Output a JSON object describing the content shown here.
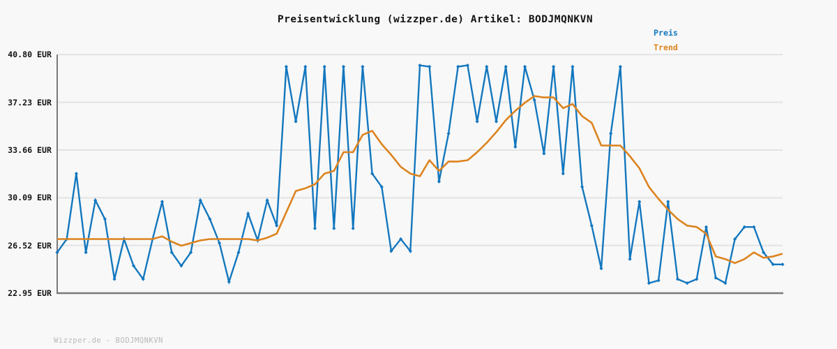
{
  "title": "Preisentwicklung (wizzper.de) Artikel: BODJMQNKVN",
  "legend": {
    "price_label": "Preis",
    "trend_label": "Trend"
  },
  "watermark": "Wizzper.de - BODJMQNKVN",
  "y_axis": {
    "unit": "EUR",
    "tick_labels": [
      "40.80 EUR",
      "37.23 EUR",
      "33.66 EUR",
      "30.09 EUR",
      "26.52 EUR",
      "22.95 EUR"
    ],
    "tick_values": [
      40.8,
      37.23,
      33.66,
      30.09,
      26.52,
      22.95
    ]
  },
  "colors": {
    "price": "#1377be",
    "trend": "#dc831f",
    "grid": "#e3e3e3",
    "axis": "#7a7a7a",
    "background": "#f8f8f8",
    "title_text": "#141414",
    "watermark_text": "#b9b9b9"
  },
  "chart_data": {
    "type": "line",
    "title": "Preisentwicklung (wizzper.de) Artikel: BODJMQNKVN",
    "ylabel": "EUR",
    "ylim": [
      22.95,
      40.8
    ],
    "y_ticks": [
      22.95,
      26.52,
      30.09,
      33.66,
      37.23,
      40.8
    ],
    "grid": "horizontal",
    "legend_position": "top-right",
    "series": [
      {
        "name": "Preis",
        "color": "#1377be",
        "markers": true,
        "values": [
          26.0,
          27.0,
          31.9,
          26.0,
          29.9,
          28.5,
          24.0,
          27.0,
          25.0,
          24.0,
          27.0,
          29.8,
          26.0,
          25.0,
          26.0,
          29.9,
          28.5,
          26.7,
          23.8,
          26.0,
          28.9,
          26.9,
          29.9,
          28.0,
          39.9,
          35.8,
          39.9,
          27.8,
          39.9,
          27.8,
          39.9,
          27.8,
          39.9,
          31.9,
          30.9,
          26.1,
          27.0,
          26.1,
          40.0,
          39.9,
          31.3,
          34.9,
          39.9,
          40.0,
          35.8,
          39.9,
          35.8,
          39.9,
          33.9,
          39.9,
          37.4,
          33.4,
          39.9,
          31.9,
          39.9,
          30.9,
          28.0,
          24.8,
          34.9,
          39.9,
          25.5,
          29.8,
          23.7,
          23.9,
          29.8,
          24.0,
          23.7,
          24.0,
          27.9,
          24.1,
          23.7,
          27.0,
          27.9,
          27.9,
          26.0,
          25.1,
          25.1
        ]
      },
      {
        "name": "Trend",
        "color": "#dc831f",
        "markers": false,
        "values": [
          27.0,
          27.0,
          27.0,
          27.0,
          27.0,
          27.0,
          27.0,
          27.0,
          27.0,
          27.0,
          27.0,
          27.2,
          26.8,
          26.5,
          26.7,
          26.9,
          27.0,
          27.0,
          27.0,
          27.0,
          27.0,
          26.9,
          27.1,
          27.4,
          29.0,
          30.6,
          30.8,
          31.1,
          31.9,
          32.1,
          33.5,
          33.5,
          34.8,
          35.1,
          34.1,
          33.3,
          32.4,
          31.9,
          31.7,
          32.9,
          32.1,
          32.8,
          32.8,
          32.9,
          33.5,
          34.2,
          35.0,
          35.9,
          36.6,
          37.2,
          37.7,
          37.6,
          37.6,
          36.8,
          37.1,
          36.2,
          35.7,
          34.0,
          34.0,
          34.0,
          33.2,
          32.3,
          30.9,
          30.0,
          29.2,
          28.5,
          28.0,
          27.9,
          27.4,
          25.7,
          25.5,
          25.2,
          25.5,
          26.0,
          25.6,
          25.7,
          25.9
        ]
      }
    ]
  }
}
